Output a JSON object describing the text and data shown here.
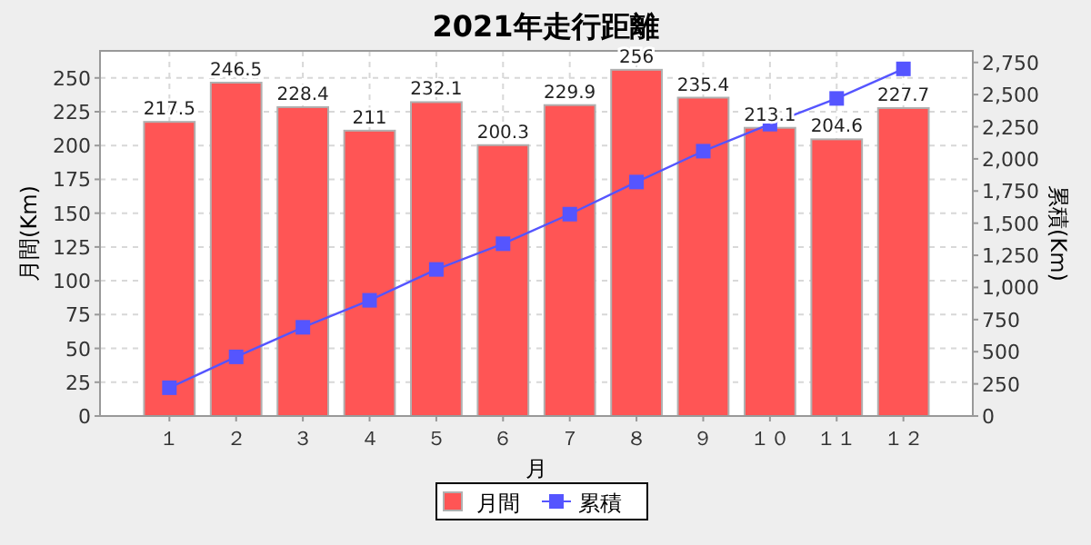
{
  "chart_data": {
    "type": "bar",
    "title": "2021年走行距離",
    "xlabel": "月",
    "ylabel": "月間(Km)",
    "y2label": "累積(Km)",
    "categories": [
      "１",
      "２",
      "３",
      "４",
      "５",
      "６",
      "７",
      "８",
      "９",
      "１０",
      "１１",
      "１２"
    ],
    "series": [
      {
        "name": "月間",
        "color": "#ff5555",
        "values": [
          217.5,
          246.5,
          228.4,
          211,
          232.1,
          200.3,
          229.9,
          256,
          235.4,
          213.1,
          204.6,
          227.7
        ],
        "value_labels": [
          "217.5",
          "246.5",
          "228.4",
          "211",
          "232.1",
          "200.3",
          "229.9",
          "256",
          "235.4",
          "213.1",
          "204.6",
          "227.7"
        ]
      },
      {
        "name": "累積",
        "type": "line",
        "axis": "y2",
        "color": "#5555ff",
        "marker": "square",
        "values": [
          220,
          460,
          690,
          900,
          1140,
          1340,
          1570,
          1820,
          2060,
          2270,
          2470,
          2700
        ]
      }
    ],
    "ylim": [
      0,
      270
    ],
    "yticks": [
      0,
      25,
      50,
      75,
      100,
      125,
      150,
      175,
      200,
      225,
      250
    ],
    "y2lim": [
      0,
      2840
    ],
    "y2ticks": [
      {
        "value": 0,
        "label": "0"
      },
      {
        "value": 250,
        "label": "250"
      },
      {
        "value": 500,
        "label": "500"
      },
      {
        "value": 750,
        "label": "750"
      },
      {
        "value": 1000,
        "label": "1,000"
      },
      {
        "value": 1250,
        "label": "1,250"
      },
      {
        "value": 1500,
        "label": "1,500"
      },
      {
        "value": 1750,
        "label": "1,750"
      },
      {
        "value": 2000,
        "label": "2,000"
      },
      {
        "value": 2250,
        "label": "2,250"
      },
      {
        "value": 2500,
        "label": "2,500"
      },
      {
        "value": 2750,
        "label": "2,750"
      }
    ],
    "grid": true,
    "legend": "bottom"
  }
}
